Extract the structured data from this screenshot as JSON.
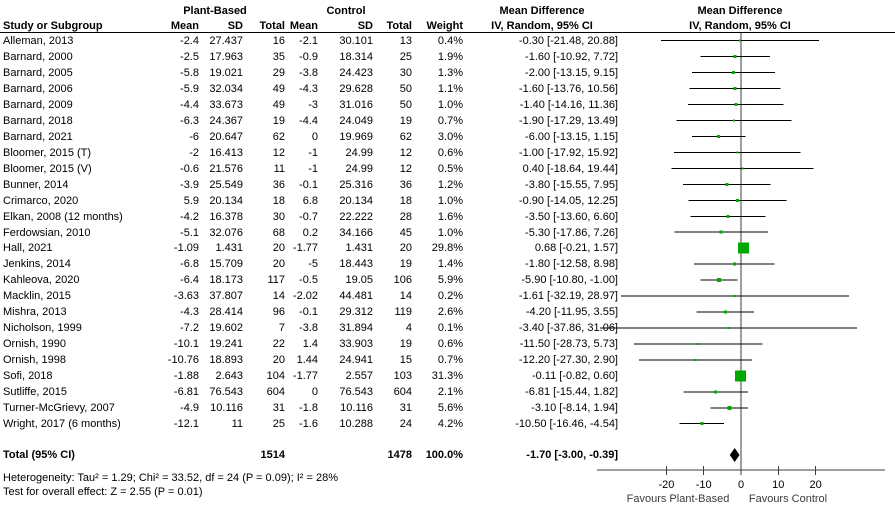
{
  "header": {
    "study_col": "Study or Subgroup",
    "group1": "Plant-Based",
    "group2": "Control",
    "mean": "Mean",
    "sd": "SD",
    "total": "Total",
    "weight": "Weight",
    "md_title": "Mean Difference",
    "md_subtitle": "IV, Random, 95% CI"
  },
  "chart_data": {
    "type": "forest",
    "effect_measure": "Mean Difference",
    "model": "IV, Random, 95% CI",
    "studies": [
      {
        "name": "Alleman, 2013",
        "mean1": "-2.4",
        "sd1": "27.437",
        "n1": "16",
        "mean2": "-2.1",
        "sd2": "30.101",
        "n2": "13",
        "weight": "0.4%",
        "weight_pct": 0.4,
        "ci_text": "-0.30 [-21.48, 20.88]",
        "md": -0.3,
        "lo": -21.48,
        "hi": 20.88
      },
      {
        "name": "Barnard, 2000",
        "mean1": "-2.5",
        "sd1": "17.963",
        "n1": "35",
        "mean2": "-0.9",
        "sd2": "18.314",
        "n2": "25",
        "weight": "1.9%",
        "weight_pct": 1.9,
        "ci_text": "-1.60 [-10.92, 7.72]",
        "md": -1.6,
        "lo": -10.92,
        "hi": 7.72
      },
      {
        "name": "Barnard, 2005",
        "mean1": "-5.8",
        "sd1": "19.021",
        "n1": "29",
        "mean2": "-3.8",
        "sd2": "24.423",
        "n2": "30",
        "weight": "1.3%",
        "weight_pct": 1.3,
        "ci_text": "-2.00 [-13.15, 9.15]",
        "md": -2.0,
        "lo": -13.15,
        "hi": 9.15
      },
      {
        "name": "Barnard, 2006",
        "mean1": "-5.9",
        "sd1": "32.034",
        "n1": "49",
        "mean2": "-4.3",
        "sd2": "29.628",
        "n2": "50",
        "weight": "1.1%",
        "weight_pct": 1.1,
        "ci_text": "-1.60 [-13.76, 10.56]",
        "md": -1.6,
        "lo": -13.76,
        "hi": 10.56
      },
      {
        "name": "Barnard, 2009",
        "mean1": "-4.4",
        "sd1": "33.673",
        "n1": "49",
        "mean2": "-3",
        "sd2": "31.016",
        "n2": "50",
        "weight": "1.0%",
        "weight_pct": 1.0,
        "ci_text": "-1.40 [-14.16, 11.36]",
        "md": -1.4,
        "lo": -14.16,
        "hi": 11.36
      },
      {
        "name": "Barnard, 2018",
        "mean1": "-6.3",
        "sd1": "24.367",
        "n1": "19",
        "mean2": "-4.4",
        "sd2": "24.049",
        "n2": "19",
        "weight": "0.7%",
        "weight_pct": 0.7,
        "ci_text": "-1.90 [-17.29, 13.49]",
        "md": -1.9,
        "lo": -17.29,
        "hi": 13.49
      },
      {
        "name": "Barnard, 2021",
        "mean1": "-6",
        "sd1": "20.647",
        "n1": "62",
        "mean2": "0",
        "sd2": "19.969",
        "n2": "62",
        "weight": "3.0%",
        "weight_pct": 3.0,
        "ci_text": "-6.00 [-13.15, 1.15]",
        "md": -6.0,
        "lo": -13.15,
        "hi": 1.15
      },
      {
        "name": "Bloomer, 2015 (T)",
        "mean1": "-2",
        "sd1": "16.413",
        "n1": "12",
        "mean2": "-1",
        "sd2": "24.99",
        "n2": "12",
        "weight": "0.6%",
        "weight_pct": 0.6,
        "ci_text": "-1.00 [-17.92, 15.92]",
        "md": -1.0,
        "lo": -17.92,
        "hi": 15.92
      },
      {
        "name": "Bloomer, 2015 (V)",
        "mean1": "-0.6",
        "sd1": "21.576",
        "n1": "11",
        "mean2": "-1",
        "sd2": "24.99",
        "n2": "12",
        "weight": "0.5%",
        "weight_pct": 0.5,
        "ci_text": "0.40 [-18.64, 19.44]",
        "md": 0.4,
        "lo": -18.64,
        "hi": 19.44
      },
      {
        "name": "Bunner, 2014",
        "mean1": "-3.9",
        "sd1": "25.549",
        "n1": "36",
        "mean2": "-0.1",
        "sd2": "25.316",
        "n2": "36",
        "weight": "1.2%",
        "weight_pct": 1.2,
        "ci_text": "-3.80 [-15.55, 7.95]",
        "md": -3.8,
        "lo": -15.55,
        "hi": 7.95
      },
      {
        "name": "Crimarco, 2020",
        "mean1": "5.9",
        "sd1": "20.134",
        "n1": "18",
        "mean2": "6.8",
        "sd2": "20.134",
        "n2": "18",
        "weight": "1.0%",
        "weight_pct": 1.0,
        "ci_text": "-0.90 [-14.05, 12.25]",
        "md": -0.9,
        "lo": -14.05,
        "hi": 12.25
      },
      {
        "name": "Elkan, 2008 (12 months)",
        "mean1": "-4.2",
        "sd1": "16.378",
        "n1": "30",
        "mean2": "-0.7",
        "sd2": "22.222",
        "n2": "28",
        "weight": "1.6%",
        "weight_pct": 1.6,
        "ci_text": "-3.50 [-13.60, 6.60]",
        "md": -3.5,
        "lo": -13.6,
        "hi": 6.6
      },
      {
        "name": "Ferdowsian, 2010",
        "mean1": "-5.1",
        "sd1": "32.076",
        "n1": "68",
        "mean2": "0.2",
        "sd2": "34.166",
        "n2": "45",
        "weight": "1.0%",
        "weight_pct": 1.0,
        "ci_text": "-5.30 [-17.86, 7.26]",
        "md": -5.3,
        "lo": -17.86,
        "hi": 7.26
      },
      {
        "name": "Hall, 2021",
        "mean1": "-1.09",
        "sd1": "1.431",
        "n1": "20",
        "mean2": "-1.77",
        "sd2": "1.431",
        "n2": "20",
        "weight": "29.8%",
        "weight_pct": 29.8,
        "ci_text": "0.68 [-0.21, 1.57]",
        "md": 0.68,
        "lo": -0.21,
        "hi": 1.57
      },
      {
        "name": "Jenkins, 2014",
        "mean1": "-6.8",
        "sd1": "15.709",
        "n1": "20",
        "mean2": "-5",
        "sd2": "18.443",
        "n2": "19",
        "weight": "1.4%",
        "weight_pct": 1.4,
        "ci_text": "-1.80 [-12.58, 8.98]",
        "md": -1.8,
        "lo": -12.58,
        "hi": 8.98
      },
      {
        "name": "Kahleova, 2020",
        "mean1": "-6.4",
        "sd1": "18.173",
        "n1": "117",
        "mean2": "-0.5",
        "sd2": "19.05",
        "n2": "106",
        "weight": "5.9%",
        "weight_pct": 5.9,
        "ci_text": "-5.90 [-10.80, -1.00]",
        "md": -5.9,
        "lo": -10.8,
        "hi": -1.0
      },
      {
        "name": "Macklin, 2015",
        "mean1": "-3.63",
        "sd1": "37.807",
        "n1": "14",
        "mean2": "-2.02",
        "sd2": "44.481",
        "n2": "14",
        "weight": "0.2%",
        "weight_pct": 0.2,
        "ci_text": "-1.61 [-32.19, 28.97]",
        "md": -1.61,
        "lo": -32.19,
        "hi": 28.97
      },
      {
        "name": "Mishra, 2013",
        "mean1": "-4.3",
        "sd1": "28.414",
        "n1": "96",
        "mean2": "-0.1",
        "sd2": "29.312",
        "n2": "119",
        "weight": "2.6%",
        "weight_pct": 2.6,
        "ci_text": "-4.20 [-11.95, 3.55]",
        "md": -4.2,
        "lo": -11.95,
        "hi": 3.55
      },
      {
        "name": "Nicholson, 1999",
        "mean1": "-7.2",
        "sd1": "19.602",
        "n1": "7",
        "mean2": "-3.8",
        "sd2": "31.894",
        "n2": "4",
        "weight": "0.1%",
        "weight_pct": 0.1,
        "ci_text": "-3.40 [-37.86, 31.06]",
        "md": -3.4,
        "lo": -37.86,
        "hi": 31.06
      },
      {
        "name": "Ornish, 1990",
        "mean1": "-10.1",
        "sd1": "19.241",
        "n1": "22",
        "mean2": "1.4",
        "sd2": "33.903",
        "n2": "19",
        "weight": "0.6%",
        "weight_pct": 0.6,
        "ci_text": "-11.50 [-28.73, 5.73]",
        "md": -11.5,
        "lo": -28.73,
        "hi": 5.73
      },
      {
        "name": "Ornish, 1998",
        "mean1": "-10.76",
        "sd1": "18.893",
        "n1": "20",
        "mean2": "1.44",
        "sd2": "24.941",
        "n2": "15",
        "weight": "0.7%",
        "weight_pct": 0.7,
        "ci_text": "-12.20 [-27.30, 2.90]",
        "md": -12.2,
        "lo": -27.3,
        "hi": 2.9
      },
      {
        "name": "Sofi, 2018",
        "mean1": "-1.88",
        "sd1": "2.643",
        "n1": "104",
        "mean2": "-1.77",
        "sd2": "2.557",
        "n2": "103",
        "weight": "31.3%",
        "weight_pct": 31.3,
        "ci_text": "-0.11 [-0.82, 0.60]",
        "md": -0.11,
        "lo": -0.82,
        "hi": 0.6
      },
      {
        "name": "Sutliffe, 2015",
        "mean1": "-6.81",
        "sd1": "76.543",
        "n1": "604",
        "mean2": "0",
        "sd2": "76.543",
        "n2": "604",
        "weight": "2.1%",
        "weight_pct": 2.1,
        "ci_text": "-6.81 [-15.44, 1.82]",
        "md": -6.81,
        "lo": -15.44,
        "hi": 1.82
      },
      {
        "name": "Turner-McGrievy, 2007",
        "mean1": "-4.9",
        "sd1": "10.116",
        "n1": "31",
        "mean2": "-1.8",
        "sd2": "10.116",
        "n2": "31",
        "weight": "5.6%",
        "weight_pct": 5.6,
        "ci_text": "-3.10 [-8.14, 1.94]",
        "md": -3.1,
        "lo": -8.14,
        "hi": 1.94
      },
      {
        "name": "Wright, 2017 (6 months)",
        "mean1": "-12.1",
        "sd1": "11",
        "n1": "25",
        "mean2": "-1.6",
        "sd2": "10.288",
        "n2": "24",
        "weight": "4.2%",
        "weight_pct": 4.2,
        "ci_text": "-10.50 [-16.46, -4.54]",
        "md": -10.5,
        "lo": -16.46,
        "hi": -4.54
      }
    ],
    "total": {
      "label": "Total (95% CI)",
      "n1": "1514",
      "n2": "1478",
      "weight": "100.0%",
      "ci_text": "-1.70 [-3.00, -0.39]",
      "md": -1.7,
      "lo": -3.0,
      "hi": -0.39
    },
    "heterogeneity": "Heterogeneity: Tau² = 1.29; Chi² = 33.52, df = 24 (P = 0.09); I² = 28%",
    "overall_effect": "Test for overall effect: Z = 2.55 (P = 0.01)",
    "axis": {
      "ticks": [
        -20,
        -10,
        0,
        10,
        20
      ],
      "xmin": -38.6,
      "xmax": 38.6,
      "favours_left": "Favours Plant-Based",
      "favours_right": "Favours Control"
    },
    "colors": {
      "marker": "#00a800",
      "diamond": "#000000",
      "line": "#000000",
      "axis": "#3c3c3c"
    }
  }
}
